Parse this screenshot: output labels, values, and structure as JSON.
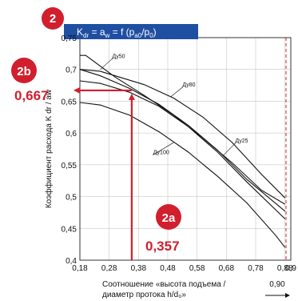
{
  "badges": {
    "main": "2",
    "y_marker": "2b",
    "x_marker": "2a"
  },
  "header": {
    "title_main": "K",
    "title_sub": "dr",
    "title_rest": " = a",
    "title_sub2": "w",
    "title_rest2": " = f (p",
    "title_sub3": "a0",
    "title_rest3": "/p",
    "title_sub4": "0",
    "title_end": ")",
    "bg_color": "#1f4fa3"
  },
  "annotations": {
    "y_value": "0,667",
    "x_value": "0,357",
    "accent_color": "#d11f2e"
  },
  "chart_data": {
    "type": "line",
    "ylabel": "Коэффициент расхода K dr / aw",
    "xlabel_line1": "Соотношение «высота подъема /",
    "xlabel_line2": "диаметр протока h/d₀»",
    "xlim": [
      0.18,
      0.9
    ],
    "ylim": [
      0.4,
      0.75
    ],
    "x_ticks": [
      "0,18",
      "0,28",
      "0,38",
      "0,48",
      "0,58",
      "0,68",
      "0,78",
      "0,88",
      "0,9"
    ],
    "y_ticks": [
      "0,4",
      "0,45",
      "0,5",
      "0,55",
      "0,6",
      "0,65",
      "0,7",
      "0,75"
    ],
    "extra_x_label": "0,90",
    "grid": true,
    "series": [
      {
        "name": "Ду50",
        "points": [
          [
            0.18,
            0.722
          ],
          [
            0.2,
            0.722
          ],
          [
            0.3,
            0.688
          ],
          [
            0.4,
            0.659
          ],
          [
            0.5,
            0.628
          ],
          [
            0.6,
            0.592
          ],
          [
            0.7,
            0.553
          ],
          [
            0.8,
            0.51
          ],
          [
            0.88,
            0.488
          ]
        ]
      },
      {
        "name": "Ду80",
        "points": [
          [
            0.18,
            0.7
          ],
          [
            0.25,
            0.697
          ],
          [
            0.35,
            0.683
          ],
          [
            0.4,
            0.676
          ],
          [
            0.5,
            0.655
          ],
          [
            0.6,
            0.625
          ],
          [
            0.7,
            0.585
          ],
          [
            0.8,
            0.535
          ],
          [
            0.88,
            0.498
          ]
        ]
      },
      {
        "name": "",
        "points": [
          [
            0.18,
            0.7
          ],
          [
            0.25,
            0.69
          ],
          [
            0.35,
            0.67
          ],
          [
            0.45,
            0.645
          ],
          [
            0.55,
            0.612
          ],
          [
            0.65,
            0.573
          ],
          [
            0.75,
            0.527
          ],
          [
            0.88,
            0.477
          ]
        ]
      },
      {
        "name": "Ду25",
        "points": [
          [
            0.18,
            0.682
          ],
          [
            0.25,
            0.678
          ],
          [
            0.35,
            0.664
          ],
          [
            0.45,
            0.642
          ],
          [
            0.55,
            0.61
          ],
          [
            0.65,
            0.57
          ],
          [
            0.75,
            0.523
          ],
          [
            0.88,
            0.465
          ]
        ]
      },
      {
        "name": "Ду100",
        "points": [
          [
            0.18,
            0.648
          ],
          [
            0.25,
            0.644
          ],
          [
            0.35,
            0.628
          ],
          [
            0.45,
            0.602
          ],
          [
            0.55,
            0.57
          ],
          [
            0.65,
            0.532
          ],
          [
            0.75,
            0.49
          ],
          [
            0.85,
            0.438
          ],
          [
            0.88,
            0.42
          ]
        ]
      }
    ],
    "marker": {
      "x": 0.357,
      "y": 0.667
    },
    "vline_x": 0.9
  }
}
